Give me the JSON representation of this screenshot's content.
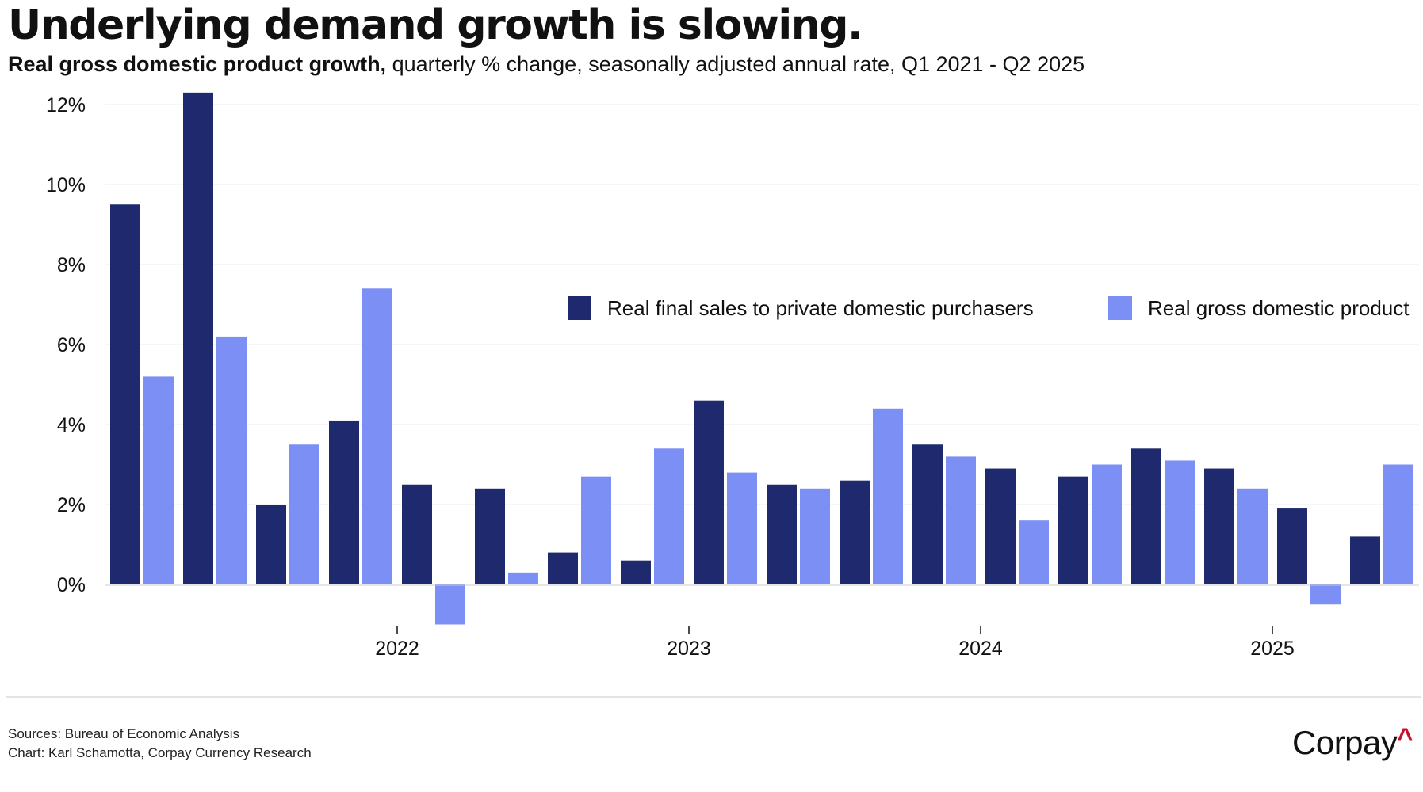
{
  "title": "Underlying demand growth is slowing.",
  "subtitle_bold": "Real gross domestic product growth,",
  "subtitle_rest": " quarterly % change, seasonally adjusted annual rate, Q1 2021 - Q2 2025",
  "footer": {
    "sources": "Sources: Bureau of Economic Analysis",
    "credit": "Chart: Karl Schamotta, Corpay Currency Research",
    "brand": "Corpay",
    "brand_mark": "^"
  },
  "colors": {
    "series1": "#1f2a6e",
    "series2": "#7b8ff4",
    "grid": "#ececec",
    "baseline": "#cccccc",
    "brand_mark": "#c8102e"
  },
  "chart_data": {
    "type": "bar",
    "categories": [
      "Q1 2021",
      "Q2 2021",
      "Q3 2021",
      "Q4 2021",
      "Q1 2022",
      "Q2 2022",
      "Q3 2022",
      "Q4 2022",
      "Q1 2023",
      "Q2 2023",
      "Q3 2023",
      "Q4 2023",
      "Q1 2024",
      "Q2 2024",
      "Q3 2024",
      "Q4 2024",
      "Q1 2025",
      "Q2 2025"
    ],
    "series": [
      {
        "name": "Real final sales to private domestic purchasers",
        "values": [
          9.5,
          12.3,
          2.0,
          4.1,
          2.5,
          2.4,
          0.8,
          0.6,
          4.6,
          2.5,
          2.6,
          3.5,
          2.9,
          2.7,
          3.4,
          2.9,
          1.9,
          1.2
        ]
      },
      {
        "name": "Real gross domestic product",
        "values": [
          5.2,
          6.2,
          3.5,
          7.4,
          -1.0,
          0.3,
          2.7,
          3.4,
          2.8,
          2.4,
          4.4,
          3.2,
          1.6,
          3.0,
          3.1,
          2.4,
          -0.5,
          3.0
        ]
      }
    ],
    "xlabel": "",
    "ylabel": "",
    "ylim": [
      -1.2,
      12.5
    ],
    "yticks": [
      0,
      2,
      4,
      6,
      8,
      10,
      12
    ],
    "ytick_labels": [
      "0%",
      "2%",
      "4%",
      "6%",
      "8%",
      "10%",
      "12%"
    ],
    "xtick_labels": [
      "2022",
      "2023",
      "2024",
      "2025"
    ],
    "xtick_positions": [
      3.5,
      7.5,
      11.5,
      15.5
    ],
    "grid": true,
    "legend_position": "top-right"
  }
}
